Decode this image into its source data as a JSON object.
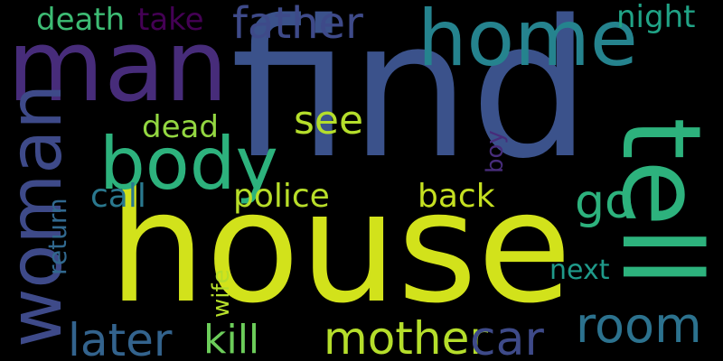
{
  "words": [
    {
      "text": "house",
      "color": "#d2e21b"
    },
    {
      "text": "find",
      "color": "#3b528b"
    },
    {
      "text": "man",
      "color": "#472c7a"
    },
    {
      "text": "home",
      "color": "#25838e"
    },
    {
      "text": "tell",
      "color": "#2db27d"
    },
    {
      "text": "body",
      "color": "#2db27d"
    },
    {
      "text": "woman",
      "color": "#3e4a89"
    },
    {
      "text": "father",
      "color": "#3e4a89"
    },
    {
      "text": "room",
      "color": "#2c728e"
    },
    {
      "text": "mother",
      "color": "#b5de2b"
    },
    {
      "text": "later",
      "color": "#33638d"
    },
    {
      "text": "kill",
      "color": "#6ccd5a"
    },
    {
      "text": "car",
      "color": "#3e4a89"
    },
    {
      "text": "see",
      "color": "#b5de2b"
    },
    {
      "text": "go",
      "color": "#2db27d"
    },
    {
      "text": "death",
      "color": "#3dbc74"
    },
    {
      "text": "take",
      "color": "#440154"
    },
    {
      "text": "night",
      "color": "#20a386"
    },
    {
      "text": "dead",
      "color": "#93d741"
    },
    {
      "text": "police",
      "color": "#b8de29"
    },
    {
      "text": "back",
      "color": "#c5e021"
    },
    {
      "text": "call",
      "color": "#2a788e"
    },
    {
      "text": "return",
      "color": "#31688e"
    },
    {
      "text": "next",
      "color": "#1f9a8a"
    },
    {
      "text": "boy",
      "color": "#472c7a"
    },
    {
      "text": "wife",
      "color": "#b5de2b"
    }
  ]
}
